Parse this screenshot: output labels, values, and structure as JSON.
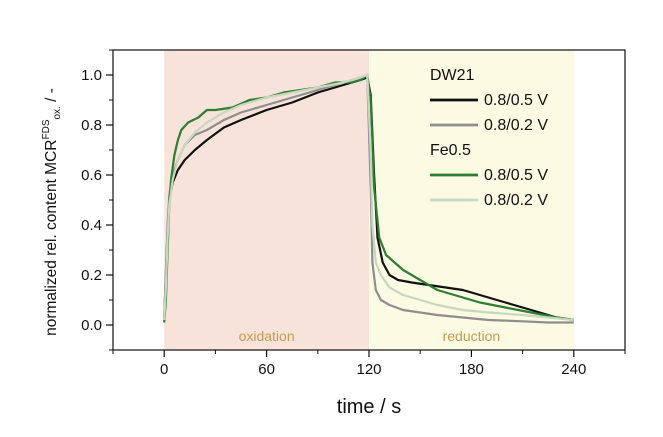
{
  "chart_data": {
    "type": "line",
    "xlabel": "time / s",
    "ylabel_main": "normalized rel. content MCR",
    "ylabel_sup": "FDS",
    "ylabel_sub": "ox.",
    "ylabel_tail": " / -",
    "xlim": [
      -30,
      270
    ],
    "ylim": [
      -0.1,
      1.1
    ],
    "xticks": [
      0,
      60,
      120,
      180,
      240
    ],
    "yticks": [
      0.0,
      0.2,
      0.4,
      0.6,
      0.8,
      1.0
    ],
    "grid": false,
    "legend_placement": "top-right",
    "regions": [
      {
        "label": "oxidation",
        "x0": 0,
        "x1": 120,
        "color": "#f8e3da"
      },
      {
        "label": "reduction",
        "x0": 120,
        "x1": 240,
        "color": "#fbfae2"
      }
    ],
    "legend_groups": [
      {
        "title": "DW21",
        "series": [
          0,
          1
        ]
      },
      {
        "title": "Fe0.5",
        "series": [
          2,
          3
        ]
      }
    ],
    "series": [
      {
        "name": "0.8/0.5 V",
        "group": "DW21",
        "color": "#111111",
        "x": [
          0,
          1,
          2,
          3,
          5,
          8,
          12,
          18,
          25,
          35,
          45,
          60,
          75,
          90,
          105,
          115,
          119,
          121,
          123,
          125,
          128,
          132,
          137,
          145,
          155,
          165,
          175,
          185,
          200,
          215,
          230,
          240
        ],
        "y": [
          0.02,
          0.2,
          0.38,
          0.5,
          0.57,
          0.62,
          0.66,
          0.7,
          0.74,
          0.79,
          0.82,
          0.86,
          0.89,
          0.93,
          0.96,
          0.98,
          0.99,
          0.92,
          0.6,
          0.35,
          0.25,
          0.2,
          0.18,
          0.17,
          0.16,
          0.15,
          0.14,
          0.12,
          0.09,
          0.06,
          0.03,
          0.02
        ]
      },
      {
        "name": "0.8/0.2 V",
        "group": "DW21",
        "color": "#8e8e8e",
        "x": [
          0,
          1,
          2,
          3,
          5,
          8,
          12,
          18,
          25,
          35,
          45,
          60,
          75,
          90,
          105,
          115,
          119,
          121,
          122,
          124,
          127,
          132,
          140,
          150,
          160,
          175,
          190,
          210,
          225,
          240
        ],
        "y": [
          0.02,
          0.22,
          0.4,
          0.52,
          0.6,
          0.66,
          0.72,
          0.76,
          0.78,
          0.82,
          0.85,
          0.88,
          0.91,
          0.94,
          0.97,
          0.99,
          1.0,
          0.55,
          0.25,
          0.14,
          0.1,
          0.08,
          0.06,
          0.05,
          0.04,
          0.03,
          0.02,
          0.015,
          0.01,
          0.01
        ]
      },
      {
        "name": "0.8/0.5 V",
        "group": "Fe0.5",
        "color": "#2e7d32",
        "x": [
          0,
          1,
          2,
          3,
          4,
          6,
          8,
          10,
          14,
          20,
          25,
          30,
          40,
          50,
          60,
          70,
          80,
          90,
          100,
          110,
          115,
          119,
          121,
          123,
          126,
          130,
          135,
          140,
          150,
          160,
          170,
          185,
          200,
          215,
          230,
          240
        ],
        "y": [
          0.01,
          0.1,
          0.3,
          0.48,
          0.58,
          0.68,
          0.74,
          0.78,
          0.81,
          0.83,
          0.86,
          0.86,
          0.87,
          0.9,
          0.91,
          0.93,
          0.94,
          0.95,
          0.97,
          0.97,
          0.98,
          1.0,
          0.9,
          0.55,
          0.35,
          0.28,
          0.25,
          0.22,
          0.18,
          0.14,
          0.12,
          0.09,
          0.07,
          0.05,
          0.03,
          0.02
        ]
      },
      {
        "name": "0.8/0.2 V",
        "group": "Fe0.5",
        "color": "#c8d8c0",
        "x": [
          0,
          1,
          2,
          3,
          5,
          8,
          12,
          18,
          25,
          35,
          45,
          60,
          75,
          90,
          105,
          115,
          119,
          121,
          122,
          124,
          127,
          132,
          140,
          150,
          160,
          175,
          190,
          210,
          225,
          240
        ],
        "y": [
          0.02,
          0.15,
          0.35,
          0.48,
          0.58,
          0.66,
          0.72,
          0.77,
          0.81,
          0.85,
          0.88,
          0.91,
          0.93,
          0.95,
          0.97,
          0.99,
          1.0,
          0.7,
          0.4,
          0.25,
          0.2,
          0.15,
          0.12,
          0.1,
          0.08,
          0.06,
          0.05,
          0.04,
          0.03,
          0.02
        ]
      }
    ]
  }
}
